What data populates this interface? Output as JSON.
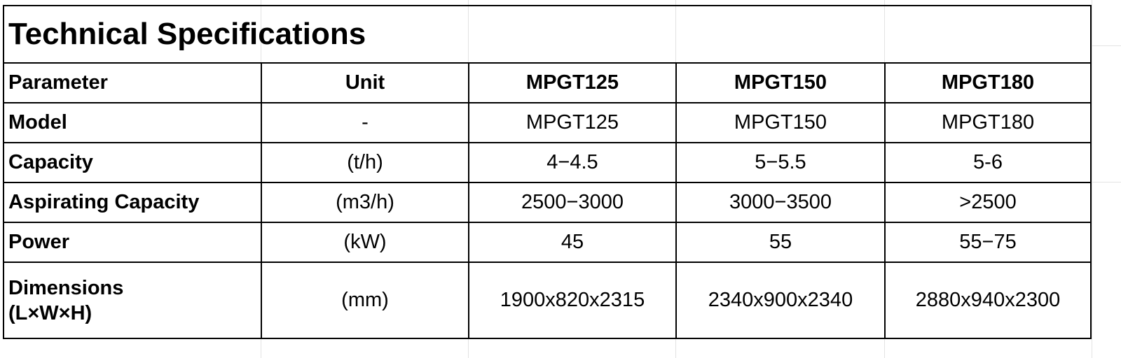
{
  "title": "Technical Specifications",
  "header": [
    "Parameter",
    "Unit",
    "MPGT125",
    "MPGT150",
    "MPGT180"
  ],
  "rows": [
    {
      "parameter": "Model",
      "unit": "-",
      "values": [
        "MPGT125",
        "MPGT150",
        "MPGT180"
      ]
    },
    {
      "parameter": "Capacity",
      "unit": "(t/h)",
      "values": [
        "4−4.5",
        "5−5.5",
        "5-6"
      ]
    },
    {
      "parameter": "Aspirating Capacity",
      "unit": "(m3/h)",
      "values": [
        "2500−3000",
        "3000−3500",
        ">2500"
      ]
    },
    {
      "parameter": "Power",
      "unit": "(kW)",
      "values": [
        "45",
        "55",
        "55−75"
      ]
    }
  ],
  "dimensions": {
    "parameter_line1": "Dimensions",
    "parameter_line2": "(L×W×H)",
    "unit": "(mm)",
    "values": [
      "1900x820x2315",
      "2340x900x2340",
      "2880x940x2300"
    ]
  }
}
